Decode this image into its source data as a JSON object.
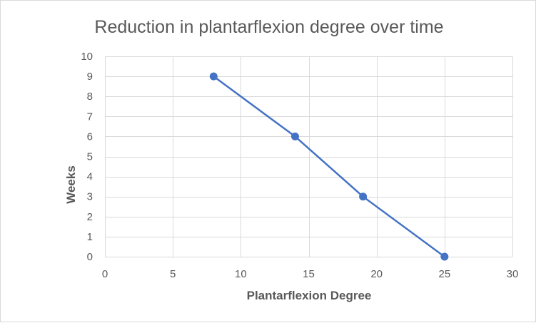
{
  "chart_data": {
    "type": "line",
    "title": "Reduction in plantarflexion degree over time",
    "xlabel": "Plantarflexion Degree",
    "ylabel": "Weeks",
    "xlim": [
      0,
      30
    ],
    "ylim": [
      0,
      10
    ],
    "xticks": [
      0,
      5,
      10,
      15,
      20,
      25,
      30
    ],
    "yticks": [
      0,
      1,
      2,
      3,
      4,
      5,
      6,
      7,
      8,
      9,
      10
    ],
    "grid": true,
    "legend": "none",
    "series": [
      {
        "color": "#4472c4",
        "x": [
          8,
          14,
          19,
          25
        ],
        "y": [
          9,
          6,
          3,
          0
        ]
      }
    ]
  }
}
